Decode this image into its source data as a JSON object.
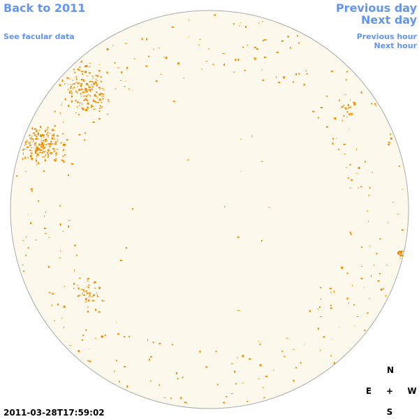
{
  "nav": {
    "back": "Back to 2011",
    "facular": "See facular data",
    "previous_day": "Previous day",
    "next_day": "Next day",
    "previous_hour": "Previous hour",
    "next_hour": "Next hour"
  },
  "timestamp": "2011-03-28T17:59:02",
  "compass": {
    "north": "N",
    "east": "E",
    "center": "+",
    "west": "W",
    "south": "S"
  }
}
